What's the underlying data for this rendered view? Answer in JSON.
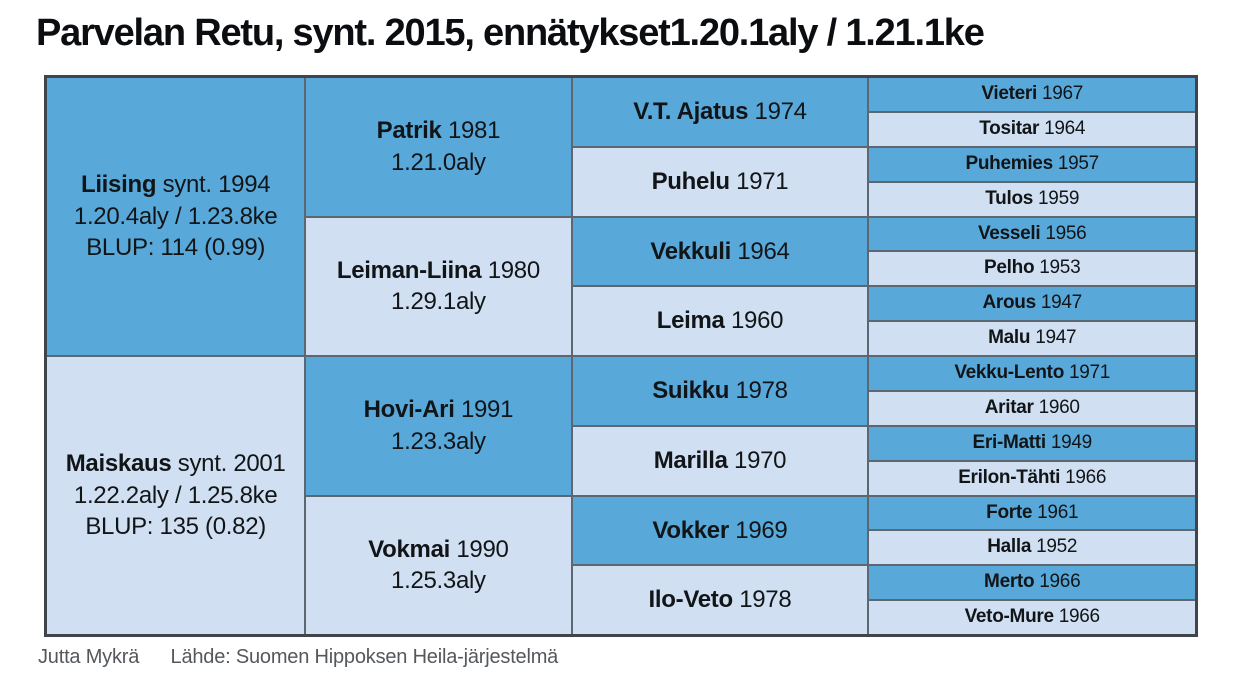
{
  "title": "Parvelan Retu, synt. 2015, ennätykset1.20.1aly / 1.21.1ke",
  "footer": {
    "author": "Jutta Mykrä",
    "source": "Lähde: Suomen Hippoksen Heila-järjestelmä"
  },
  "colors": {
    "sire_cell": "#58a9da",
    "dam_cell": "#d0e0f2",
    "inner_border": "#5d6771",
    "outer_border": "#3f454b",
    "cell_text": "#121518",
    "footer_text": "#54585c",
    "background": "#ffffff"
  },
  "pedigree": {
    "gen1": [
      {
        "name": "Liising",
        "born": "synt. 1994",
        "records": "1.20.4aly / 1.23.8ke",
        "blup": "BLUP: 114 (0.99)",
        "type": "sire"
      },
      {
        "name": "Maiskaus",
        "born": "synt. 2001",
        "records": "1.22.2aly / 1.25.8ke",
        "blup": "BLUP: 135 (0.82)",
        "type": "dam"
      }
    ],
    "gen2": [
      {
        "name": "Patrik",
        "year": "1981",
        "record": "1.21.0aly",
        "type": "sire"
      },
      {
        "name": "Leiman-Liina",
        "year": "1980",
        "record": "1.29.1aly",
        "type": "dam"
      },
      {
        "name": "Hovi-Ari",
        "year": "1991",
        "record": "1.23.3aly",
        "type": "sire"
      },
      {
        "name": "Vokmai",
        "year": "1990",
        "record": "1.25.3aly",
        "type": "dam"
      }
    ],
    "gen3": [
      {
        "name": "V.T. Ajatus",
        "year": "1974",
        "type": "sire"
      },
      {
        "name": "Puhelu",
        "year": "1971",
        "type": "dam"
      },
      {
        "name": "Vekkuli",
        "year": "1964",
        "type": "sire"
      },
      {
        "name": "Leima",
        "year": "1960",
        "type": "dam"
      },
      {
        "name": "Suikku",
        "year": "1978",
        "type": "sire"
      },
      {
        "name": "Marilla",
        "year": "1970",
        "type": "dam"
      },
      {
        "name": "Vokker",
        "year": "1969",
        "type": "sire"
      },
      {
        "name": "Ilo-Veto",
        "year": "1978",
        "type": "dam"
      }
    ],
    "gen4": [
      {
        "name": "Vieteri",
        "year": "1967",
        "type": "sire"
      },
      {
        "name": "Tositar",
        "year": "1964",
        "type": "dam"
      },
      {
        "name": "Puhemies",
        "year": "1957",
        "type": "sire"
      },
      {
        "name": "Tulos",
        "year": "1959",
        "type": "dam"
      },
      {
        "name": "Vesseli",
        "year": "1956",
        "type": "sire"
      },
      {
        "name": "Pelho",
        "year": "1953",
        "type": "dam"
      },
      {
        "name": "Arous",
        "year": "1947",
        "type": "sire"
      },
      {
        "name": "Malu",
        "year": "1947",
        "type": "dam"
      },
      {
        "name": "Vekku-Lento",
        "year": "1971",
        "type": "sire"
      },
      {
        "name": "Aritar",
        "year": "1960",
        "type": "dam"
      },
      {
        "name": "Eri-Matti",
        "year": "1949",
        "type": "sire"
      },
      {
        "name": "Erilon-Tähti",
        "year": "1966",
        "type": "dam"
      },
      {
        "name": "Forte",
        "year": "1961",
        "type": "sire"
      },
      {
        "name": "Halla",
        "year": "1952",
        "type": "dam"
      },
      {
        "name": "Merto",
        "year": "1966",
        "type": "sire"
      },
      {
        "name": "Veto-Mure",
        "year": "1966",
        "type": "dam"
      }
    ]
  }
}
